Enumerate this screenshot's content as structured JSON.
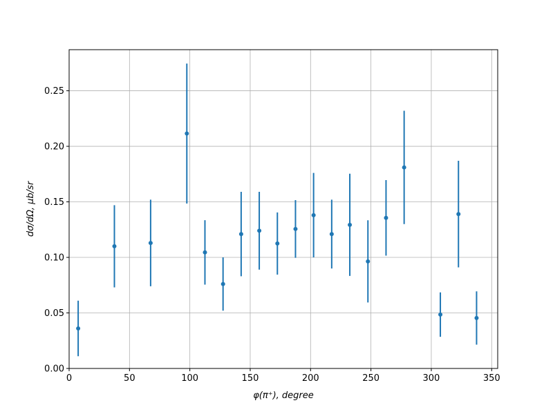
{
  "chart_data": {
    "type": "errorbar",
    "xlabel": "φ(π⁺), degree",
    "ylabel": "dσ/dΩ, μb/sr",
    "x": [
      7.5,
      37.5,
      67.5,
      97.5,
      112.5,
      127.5,
      142.5,
      157.5,
      172.5,
      187.5,
      202.5,
      217.5,
      232.5,
      247.5,
      262.5,
      277.5,
      307.5,
      322.5,
      337.5
    ],
    "values": [
      0.036,
      0.11,
      0.113,
      0.2115,
      0.1045,
      0.076,
      0.121,
      0.124,
      0.1125,
      0.1256,
      0.138,
      0.121,
      0.1293,
      0.0964,
      0.1356,
      0.181,
      0.0485,
      0.139,
      0.0454
    ],
    "errors": [
      0.025,
      0.037,
      0.039,
      0.063,
      0.029,
      0.024,
      0.038,
      0.035,
      0.028,
      0.026,
      0.038,
      0.031,
      0.046,
      0.037,
      0.034,
      0.051,
      0.02,
      0.048,
      0.024
    ],
    "color": "#1f77b4",
    "xlim": [
      0,
      355
    ],
    "ylim": [
      0,
      0.287
    ],
    "xticks": [
      0,
      50,
      100,
      150,
      200,
      250,
      300,
      350
    ],
    "yticks": [
      {
        "value": 0,
        "label": "0.00"
      },
      {
        "value": 0.05,
        "label": "0.05"
      },
      {
        "value": 0.1,
        "label": "0.10"
      },
      {
        "value": 0.15,
        "label": "0.15"
      },
      {
        "value": 0.2,
        "label": "0.20"
      },
      {
        "value": 0.25,
        "label": "0.25"
      }
    ],
    "grid": true
  }
}
